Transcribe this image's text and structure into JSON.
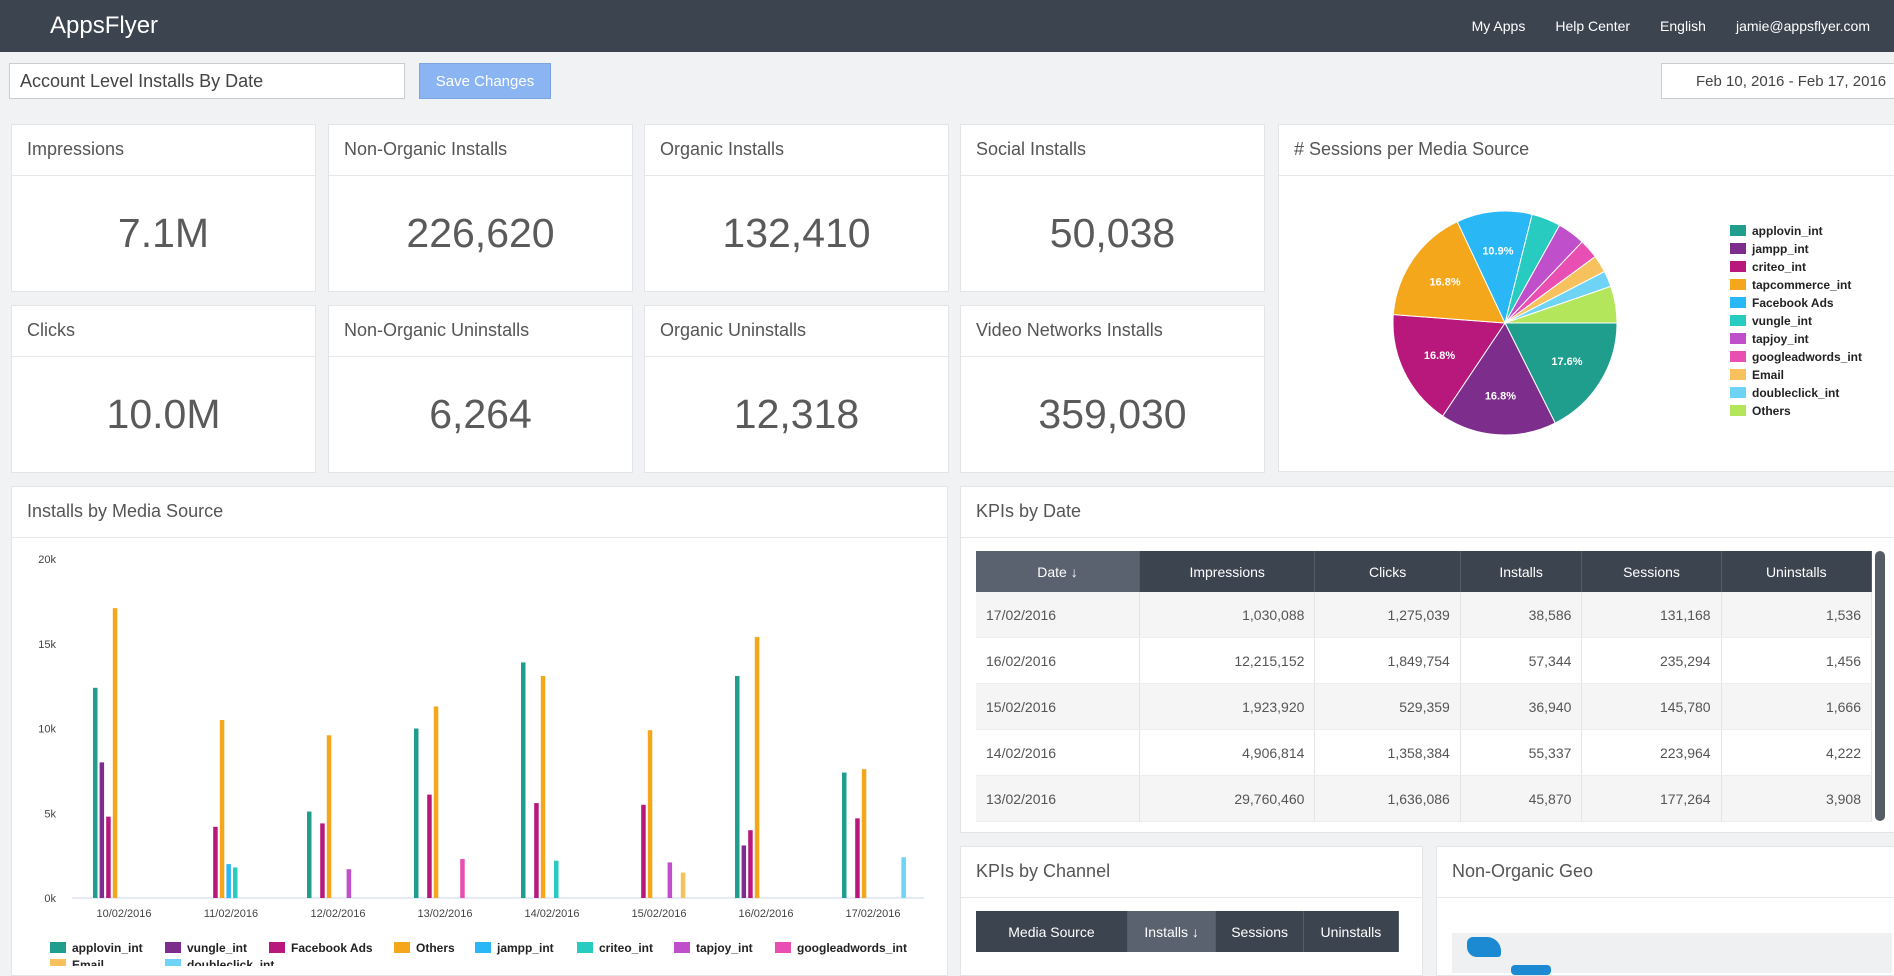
{
  "header": {
    "logo": "AppsFlyer",
    "nav": [
      "My Apps",
      "Help Center",
      "English",
      "jamie@appsflyer.com"
    ]
  },
  "toolbar": {
    "report": "Account Level Installs By Date",
    "save": "Save Changes",
    "date_range": "Feb 10, 2016 - Feb 17, 2016"
  },
  "tiles": [
    {
      "label": "Impressions",
      "value": "7.1M"
    },
    {
      "label": "Non-Organic Installs",
      "value": "226,620"
    },
    {
      "label": "Organic Installs",
      "value": "132,410"
    },
    {
      "label": "Social Installs",
      "value": "50,038"
    },
    {
      "label": "Clicks",
      "value": "10.0M"
    },
    {
      "label": "Non-Organic Uninstalls",
      "value": "6,264"
    },
    {
      "label": "Organic Uninstalls",
      "value": "12,318"
    },
    {
      "label": "Video Networks Installs",
      "value": "359,030"
    }
  ],
  "chart_data": [
    {
      "type": "pie",
      "title": "# Sessions per Media Source",
      "categories": [
        "applovin_int",
        "jampp_int",
        "criteo_int",
        "tapcommerce_int",
        "Facebook Ads",
        "vungle_int",
        "tapjoy_int",
        "googleadwords_int",
        "Email",
        "doubleclick_int",
        "Others"
      ],
      "values": [
        17.6,
        16.8,
        16.8,
        16.8,
        10.9,
        4.2,
        4.0,
        2.8,
        2.5,
        2.3,
        5.3
      ],
      "value_labels": [
        "17.6%",
        "16.8%",
        "16.8%",
        "16.8%",
        "10.9%",
        null,
        null,
        null,
        null,
        null,
        null
      ],
      "colors": [
        "#1f9e8e",
        "#7d2d8c",
        "#b8187c",
        "#f5a71c",
        "#2ab7f5",
        "#27cbbf",
        "#bf4fcb",
        "#e94fb3",
        "#f7c25e",
        "#6fd3f5",
        "#b4e65c"
      ]
    },
    {
      "type": "bar",
      "title": "Installs by Media Source",
      "categories": [
        "10/02/2016",
        "11/02/2016",
        "12/02/2016",
        "13/02/2016",
        "14/02/2016",
        "15/02/2016",
        "16/02/2016",
        "17/02/2016"
      ],
      "series": [
        {
          "name": "applovin_int",
          "color": "#1f9e8e",
          "values": [
            12400,
            0,
            5100,
            10000,
            13900,
            0,
            13100,
            7400
          ]
        },
        {
          "name": "vungle_int",
          "color": "#7d2d8c",
          "values": [
            8000,
            0,
            0,
            0,
            0,
            0,
            3100,
            0
          ]
        },
        {
          "name": "Facebook Ads",
          "color": "#b8187c",
          "values": [
            4800,
            4200,
            4400,
            6100,
            5600,
            5500,
            4000,
            4700
          ]
        },
        {
          "name": "Others",
          "color": "#f5a71c",
          "values": [
            17100,
            10500,
            9600,
            11300,
            13100,
            9900,
            15400,
            7600
          ]
        },
        {
          "name": "jampp_int",
          "color": "#2ab7f5",
          "values": [
            0,
            2000,
            0,
            0,
            0,
            0,
            0,
            0
          ]
        },
        {
          "name": "criteo_int",
          "color": "#27cbbf",
          "values": [
            0,
            1800,
            0,
            0,
            2200,
            0,
            0,
            0
          ]
        },
        {
          "name": "tapjoy_int",
          "color": "#bf4fcb",
          "values": [
            0,
            0,
            1700,
            0,
            0,
            2100,
            0,
            0
          ]
        },
        {
          "name": "googleadwords_int",
          "color": "#e94fb3",
          "values": [
            0,
            0,
            0,
            2300,
            0,
            0,
            0,
            0
          ]
        },
        {
          "name": "Email",
          "color": "#f7c25e",
          "values": [
            0,
            0,
            0,
            0,
            0,
            1500,
            0,
            0
          ]
        },
        {
          "name": "doubleclick_int",
          "color": "#6fd3f5",
          "values": [
            0,
            0,
            0,
            0,
            0,
            0,
            0,
            2400
          ]
        }
      ],
      "ylim": [
        0,
        20000
      ],
      "yticks": [
        {
          "value": 0,
          "label": "0k"
        },
        {
          "value": 5000,
          "label": "5k"
        },
        {
          "value": 10000,
          "label": "10k"
        },
        {
          "value": 15000,
          "label": "15k"
        },
        {
          "value": 20000,
          "label": "20k"
        }
      ]
    }
  ],
  "kpis_by_date": {
    "title": "KPIs by Date",
    "columns": [
      "Date ↓",
      "Impressions",
      "Clicks",
      "Installs",
      "Sessions",
      "Uninstalls"
    ],
    "rows": [
      [
        "17/02/2016",
        "1,030,088",
        "1,275,039",
        "38,586",
        "131,168",
        "1,536"
      ],
      [
        "16/02/2016",
        "12,215,152",
        "1,849,754",
        "57,344",
        "235,294",
        "1,456"
      ],
      [
        "15/02/2016",
        "1,923,920",
        "529,359",
        "36,940",
        "145,780",
        "1,666"
      ],
      [
        "14/02/2016",
        "4,906,814",
        "1,358,384",
        "55,337",
        "223,964",
        "4,222"
      ],
      [
        "13/02/2016",
        "29,760,460",
        "1,636,086",
        "45,870",
        "177,264",
        "3,908"
      ]
    ]
  },
  "kpis_by_channel": {
    "title": "KPIs by Channel",
    "columns": [
      "Media Source",
      "Installs ↓",
      "Sessions",
      "Uninstalls"
    ]
  },
  "geo": {
    "title": "Non-Organic Geo"
  }
}
